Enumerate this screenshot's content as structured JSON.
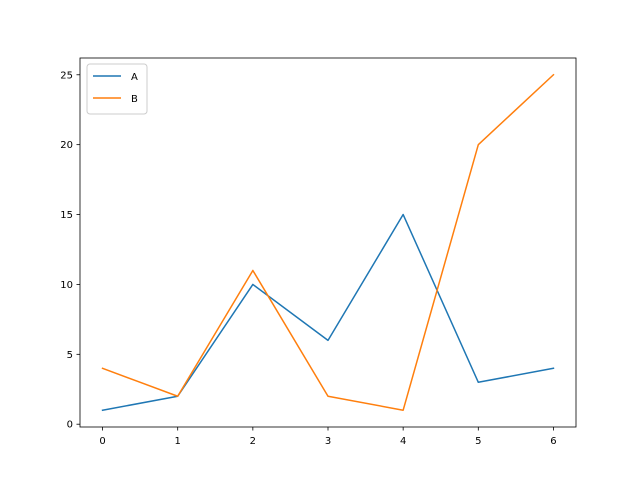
{
  "chart_data": {
    "type": "line",
    "title": "",
    "xlabel": "",
    "ylabel": "",
    "x": [
      0,
      1,
      2,
      3,
      4,
      5,
      6
    ],
    "series": [
      {
        "name": "A",
        "color": "#1f77b4",
        "values": [
          1,
          2,
          10,
          6,
          15,
          3,
          4
        ]
      },
      {
        "name": "B",
        "color": "#ff7f0e",
        "values": [
          4,
          2,
          11,
          2,
          1,
          20,
          25
        ]
      }
    ],
    "xlim": [
      -0.3,
      6.3
    ],
    "ylim": [
      -0.2,
      26.2
    ],
    "xticks": [
      0,
      1,
      2,
      3,
      4,
      5,
      6
    ],
    "yticks": [
      0,
      5,
      10,
      15,
      20,
      25
    ],
    "grid": false,
    "legend": {
      "placement": "top-left"
    }
  }
}
